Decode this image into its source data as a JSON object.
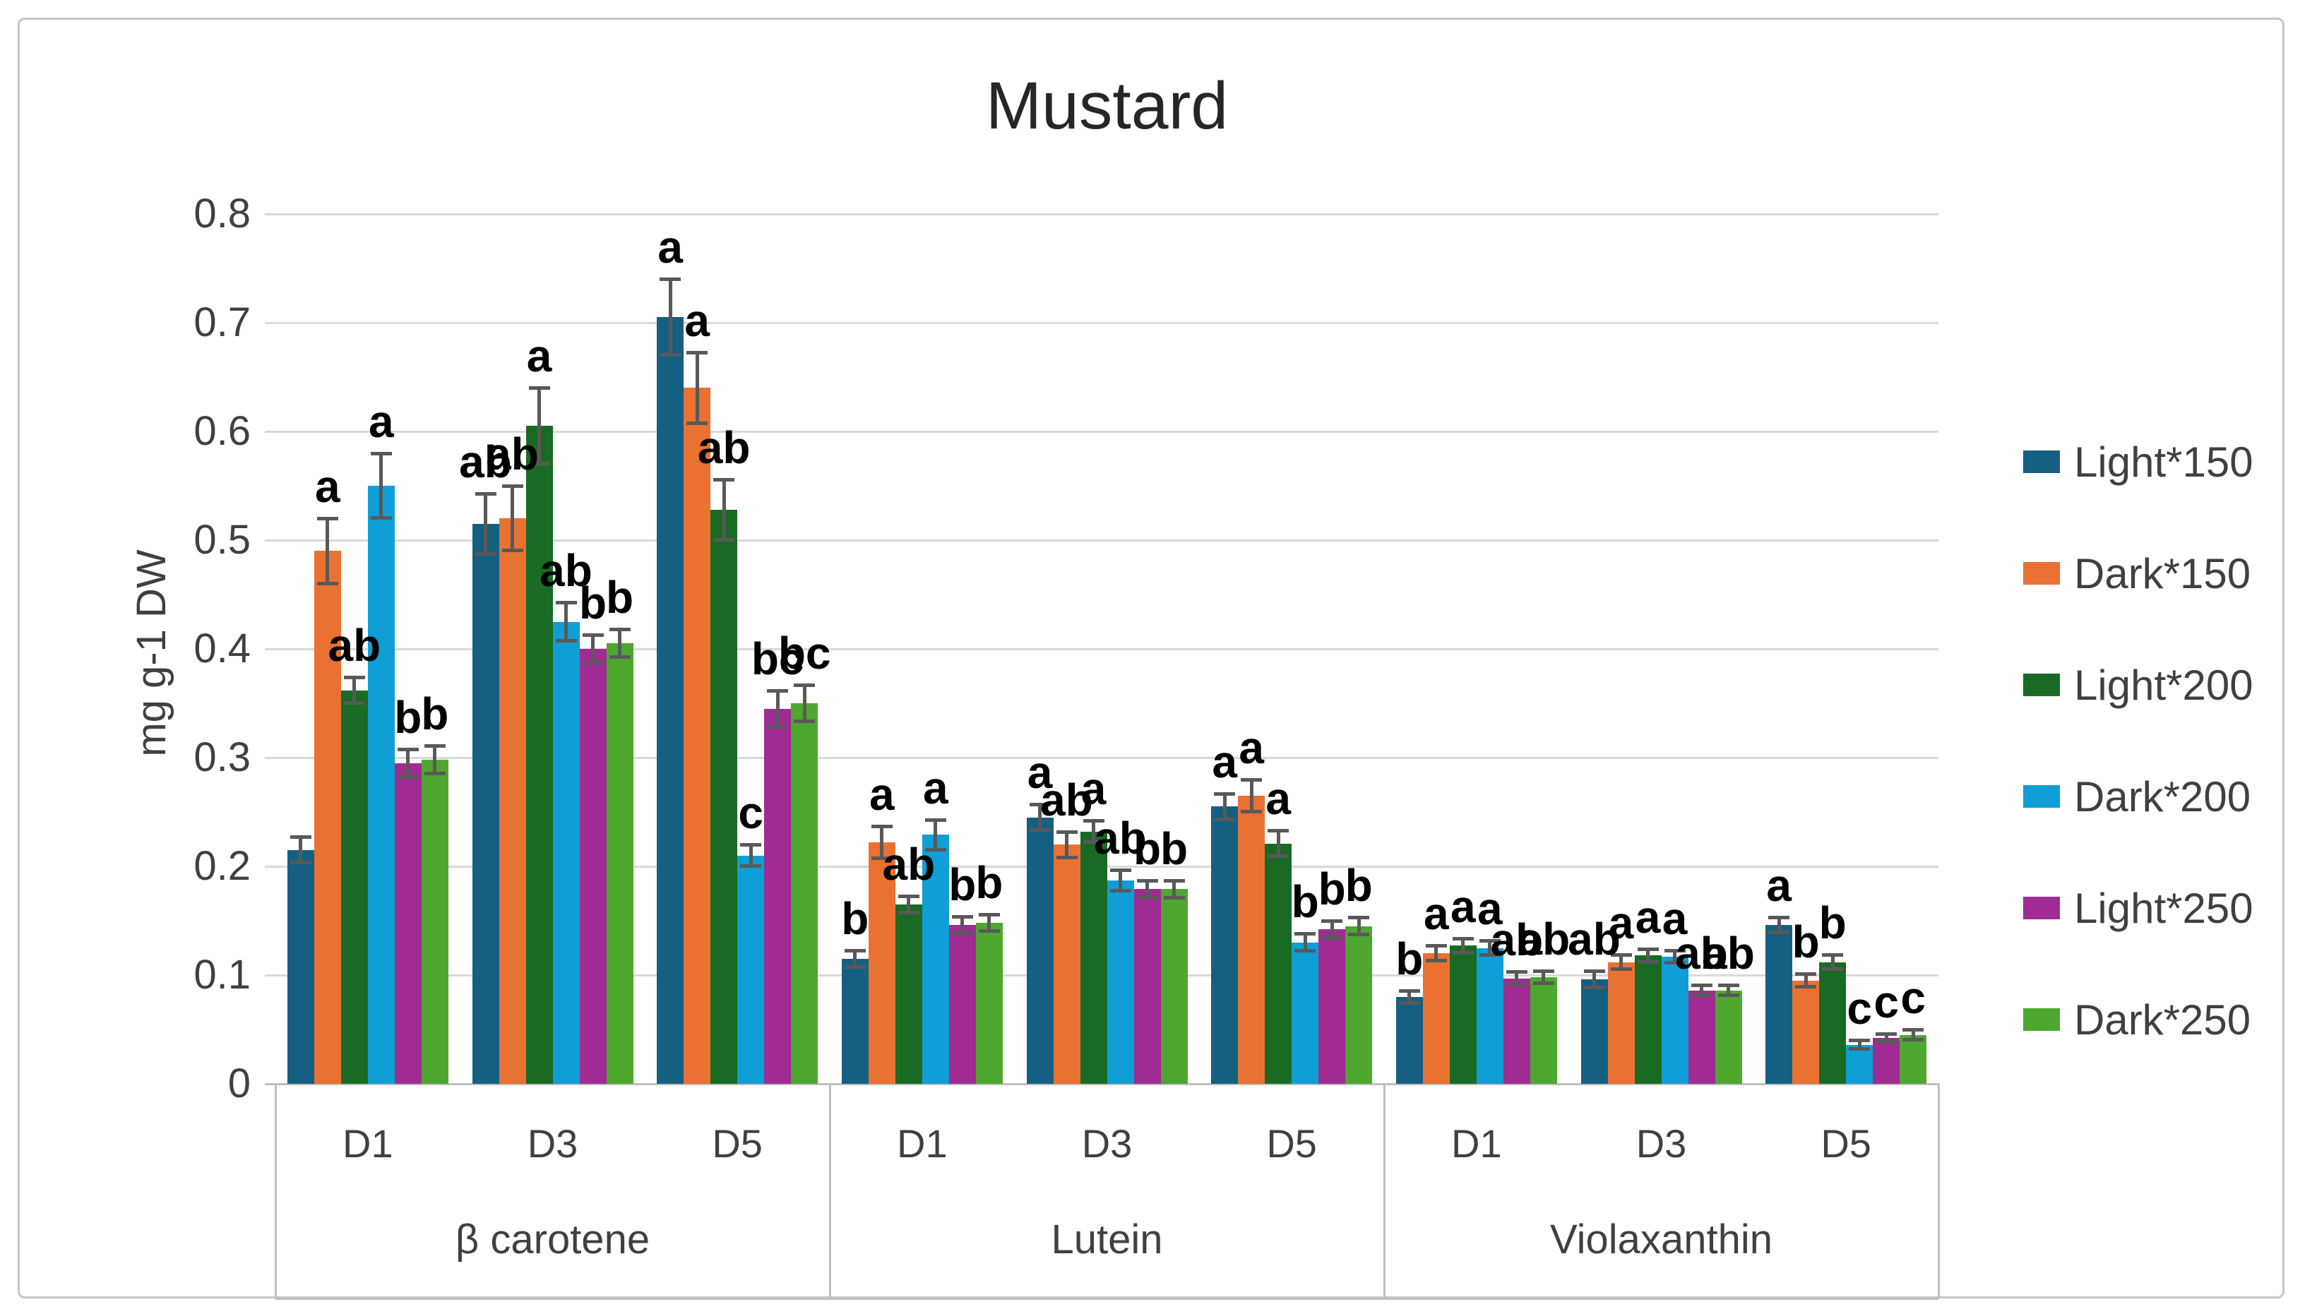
{
  "chart_title": "Mustard",
  "y_axis": {
    "title": "mg g-1 DW",
    "tick_labels": [
      "0.8",
      "0.7",
      "0.6",
      "0.5",
      "0.4",
      "0.3",
      "0.2",
      "0.1",
      "0"
    ]
  },
  "x_axis": {
    "day_labels": [
      "D1",
      "D3",
      "D5"
    ],
    "compound_labels": [
      "β carotene",
      "Lutein",
      "Violaxanthin"
    ]
  },
  "legend": {
    "items": [
      {
        "label": "Light*150",
        "color": "#156082"
      },
      {
        "label": "Dark*150",
        "color": "#E97132"
      },
      {
        "label": "Light*200",
        "color": "#196B24"
      },
      {
        "label": "Dark*200",
        "color": "#0F9ED5"
      },
      {
        "label": "Light*250",
        "color": "#A02B93"
      },
      {
        "label": "Dark*250",
        "color": "#4EA72E"
      }
    ]
  },
  "style_colors": {
    "error_bar": "#595959",
    "gridline": "#d9d9d9",
    "axis_line": "#bfbfbf"
  },
  "chart_data": {
    "type": "bar",
    "title": "Mustard",
    "xlabel": "",
    "ylabel": "mg g-1 DW",
    "ylim": [
      0,
      0.8
    ],
    "y_tick_step": 0.1,
    "grid": true,
    "legend_position": "right",
    "error_bars": true,
    "significance_letters": true,
    "categories": [
      "β carotene D1",
      "β carotene D3",
      "β carotene D5",
      "Lutein D1",
      "Lutein D3",
      "Lutein D5",
      "Violaxanthin D1",
      "Violaxanthin D3",
      "Violaxanthin D5"
    ],
    "groups": [
      {
        "compound": "β carotene",
        "days": [
          "D1",
          "D3",
          "D5"
        ]
      },
      {
        "compound": "Lutein",
        "days": [
          "D1",
          "D3",
          "D5"
        ]
      },
      {
        "compound": "Violaxanthin",
        "days": [
          "D1",
          "D3",
          "D5"
        ]
      }
    ],
    "series": [
      {
        "name": "Light*150",
        "color": "#156082",
        "values": [
          0.215,
          0.515,
          0.705,
          0.115,
          0.245,
          0.255,
          0.08,
          0.096,
          0.146
        ],
        "errors": [
          0.012,
          0.028,
          0.035,
          0.008,
          0.012,
          0.012,
          0.006,
          0.008,
          0.007
        ],
        "letters": [
          "",
          "ab",
          "a",
          "b",
          "a",
          "a",
          "b",
          "ab",
          "a"
        ]
      },
      {
        "name": "Dark*150",
        "color": "#E97132",
        "values": [
          0.49,
          0.52,
          0.64,
          0.222,
          0.22,
          0.265,
          0.12,
          0.112,
          0.095
        ],
        "errors": [
          0.03,
          0.03,
          0.033,
          0.015,
          0.012,
          0.015,
          0.007,
          0.007,
          0.006
        ],
        "letters": [
          "a",
          "ab",
          "a",
          "a",
          "ab",
          "a",
          "a",
          "a",
          "b"
        ]
      },
      {
        "name": "Light*200",
        "color": "#196B24",
        "values": [
          0.362,
          0.605,
          0.528,
          0.165,
          0.232,
          0.221,
          0.127,
          0.118,
          0.112
        ],
        "errors": [
          0.012,
          0.035,
          0.028,
          0.008,
          0.01,
          0.012,
          0.007,
          0.006,
          0.007
        ],
        "letters": [
          "ab",
          "a",
          "ab",
          "ab",
          "a",
          "a",
          "a",
          "a",
          "b"
        ]
      },
      {
        "name": "Dark*200",
        "color": "#0F9ED5",
        "values": [
          0.55,
          0.425,
          0.21,
          0.229,
          0.187,
          0.13,
          0.125,
          0.117,
          0.036
        ],
        "errors": [
          0.03,
          0.018,
          0.01,
          0.014,
          0.01,
          0.008,
          0.007,
          0.006,
          0.004
        ],
        "letters": [
          "a",
          "ab",
          "c",
          "a",
          "ab",
          "b",
          "a",
          "a",
          "c"
        ]
      },
      {
        "name": "Light*250",
        "color": "#A02B93",
        "values": [
          0.295,
          0.4,
          0.345,
          0.146,
          0.179,
          0.142,
          0.097,
          0.086,
          0.042
        ],
        "errors": [
          0.013,
          0.013,
          0.017,
          0.008,
          0.008,
          0.008,
          0.006,
          0.005,
          0.004
        ],
        "letters": [
          "b",
          "b",
          "bc",
          "b",
          "b",
          "b",
          "ab",
          "ab",
          "c"
        ]
      },
      {
        "name": "Dark*250",
        "color": "#4EA72E",
        "values": [
          0.298,
          0.405,
          0.35,
          0.148,
          0.179,
          0.145,
          0.098,
          0.086,
          0.045
        ],
        "errors": [
          0.013,
          0.013,
          0.017,
          0.008,
          0.008,
          0.008,
          0.006,
          0.005,
          0.005
        ],
        "letters": [
          "b",
          "b",
          "bc",
          "b",
          "b",
          "b",
          "ab",
          "ab",
          "c"
        ]
      }
    ]
  }
}
